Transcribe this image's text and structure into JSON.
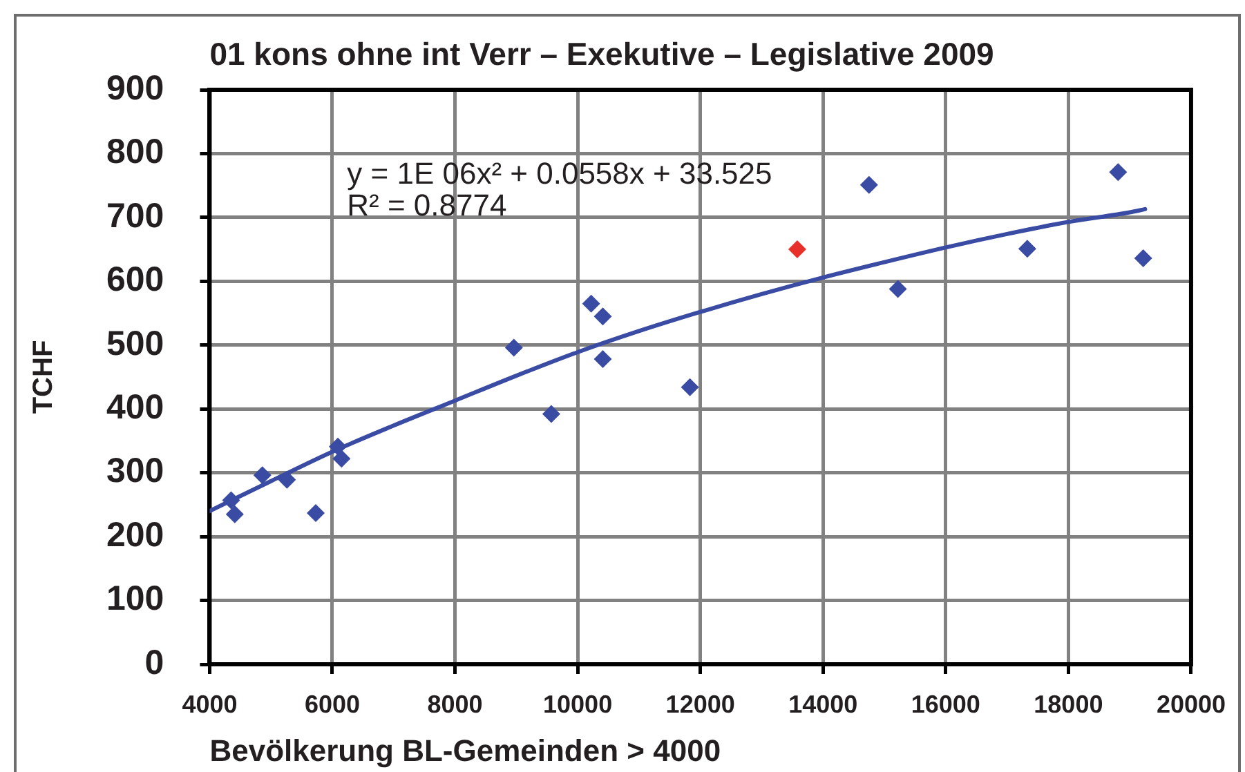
{
  "chart_data": {
    "type": "scatter",
    "title": "01 kons ohne int Verr – Exekutive – Legislative 2009",
    "xlabel": "Bevölkerung BL-Gemeinden > 4000",
    "ylabel": "TCHF",
    "xlim": [
      4000,
      20000
    ],
    "xticks": [
      4000,
      6000,
      8000,
      10000,
      12000,
      14000,
      16000,
      18000,
      20000
    ],
    "ylim": [
      0,
      900
    ],
    "yticks": [
      0,
      100,
      200,
      300,
      400,
      500,
      600,
      700,
      800,
      900
    ],
    "grid": true,
    "legend": false,
    "marker": "diamond",
    "annotations": [
      "y = 1E 06x² + 0.0558x + 33.525",
      "R² = 0.8774"
    ],
    "series": [
      {
        "color": "#3a4ba3",
        "x": [
          4350,
          4410,
          4860,
          5260,
          5730,
          6090,
          6150,
          8960,
          9570,
          10220,
          10410,
          10410,
          11830,
          14750,
          15220,
          17330,
          18810,
          19220
        ],
        "values": [
          257,
          235,
          296,
          289,
          237,
          341,
          322,
          496,
          392,
          565,
          545,
          478,
          434,
          751,
          588,
          651,
          771,
          636
        ]
      },
      {
        "color": "#e8302a",
        "x": [
          13580
        ],
        "values": [
          650
        ]
      },
      {
        "type": "line",
        "color": "#3a4ba3",
        "marker": "none",
        "x": [
          4000,
          5000,
          6000,
          7000,
          8000,
          9000,
          10000,
          11000,
          12000,
          13000,
          14000,
          15000,
          16000,
          17000,
          18000,
          19000,
          19250
        ],
        "values": [
          240,
          287,
          333,
          374,
          413,
          452,
          489,
          522,
          552,
          580,
          606,
          630,
          653,
          674,
          693,
          708,
          713
        ]
      }
    ]
  }
}
